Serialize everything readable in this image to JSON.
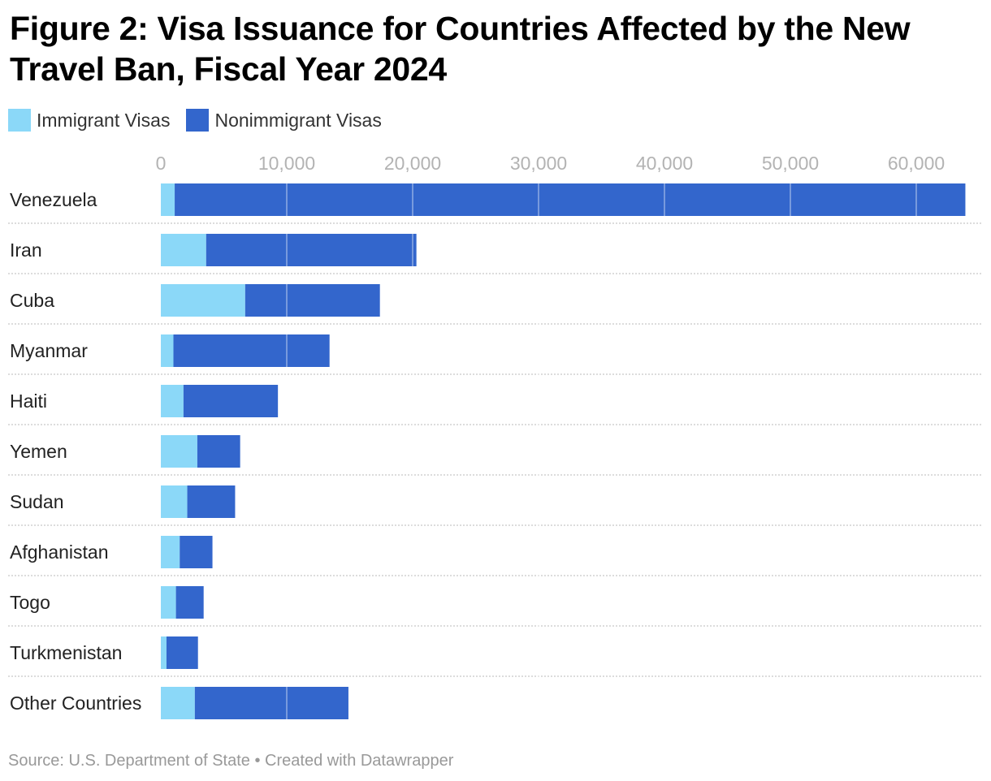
{
  "chart_data": {
    "type": "bar",
    "orientation": "horizontal",
    "stacked": true,
    "title": "Figure 2: Visa Issuance for Countries Affected by the New Travel Ban, Fiscal Year 2024",
    "categories": [
      "Venezuela",
      "Iran",
      "Cuba",
      "Myanmar",
      "Haiti",
      "Yemen",
      "Sudan",
      "Afghanistan",
      "Togo",
      "Turkmenistan",
      "Other Countries"
    ],
    "series": [
      {
        "name": "Immigrant Visas",
        "color": "#8bd8f8",
        "values": [
          1100,
          3600,
          6700,
          1000,
          1800,
          2900,
          2100,
          1500,
          1200,
          450,
          2700
        ]
      },
      {
        "name": "Nonimmigrant Visas",
        "color": "#3366cc",
        "values": [
          62800,
          16700,
          10700,
          12400,
          7500,
          3400,
          3800,
          2600,
          2200,
          2500,
          12200
        ]
      }
    ],
    "xlim": [
      0,
      64000
    ],
    "x_ticks": [
      0,
      10000,
      20000,
      30000,
      40000,
      50000,
      60000
    ],
    "x_tick_labels": [
      "0",
      "10,000",
      "20,000",
      "30,000",
      "40,000",
      "50,000",
      "60,000"
    ],
    "xlabel": "",
    "ylabel": "",
    "legend_position": "top-left",
    "grid": true
  },
  "source_text": "Source: U.S. Department of State • Created with Datawrapper"
}
